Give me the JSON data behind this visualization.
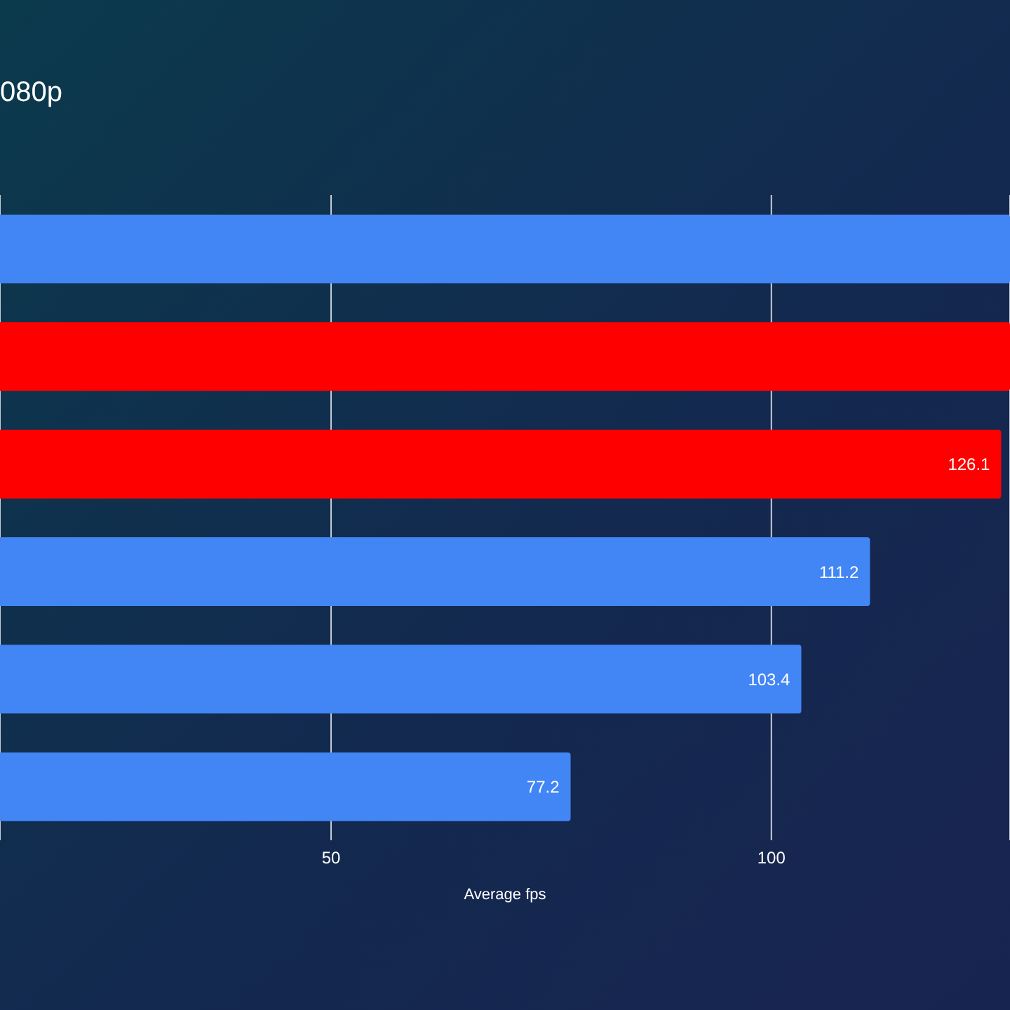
{
  "chart_data": {
    "type": "bar",
    "orientation": "horizontal",
    "title": "080p",
    "xlabel": "Average fps",
    "categories": [
      null,
      null,
      null,
      null,
      null,
      null
    ],
    "values": [
      127.1,
      127.1,
      126.1,
      111.2,
      103.4,
      77.2
    ],
    "colors": [
      "#4285f4",
      "#ff0000",
      "#ff0000",
      "#4285f4",
      "#4285f4",
      "#4285f4"
    ],
    "value_labels": [
      null,
      null,
      "126.1",
      "111.2",
      "103.4",
      "77.2"
    ],
    "xlim": [
      12.4,
      127.1
    ],
    "xticks": [
      50,
      100
    ],
    "grid": "x",
    "tick_labels": "x"
  }
}
